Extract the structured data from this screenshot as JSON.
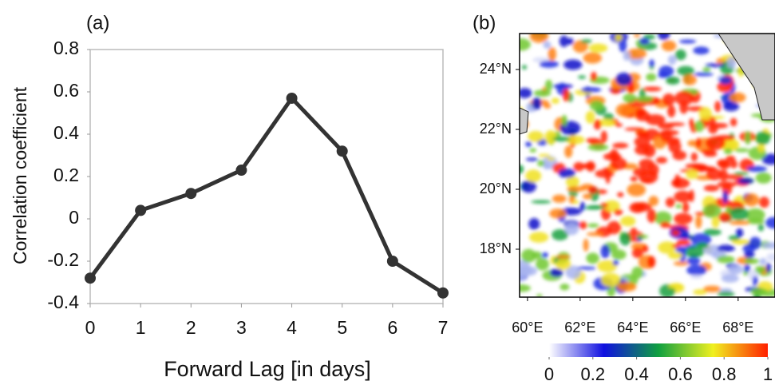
{
  "chart_data": [
    {
      "type": "line",
      "label": "(a)",
      "ylabel": "Correlation coefficient",
      "xlabel": "Forward Lag [in days]",
      "x": [
        0,
        1,
        2,
        3,
        4,
        5,
        6,
        7
      ],
      "series": [
        {
          "color": "#333333",
          "values": [
            -0.28,
            0.04,
            0.12,
            0.23,
            0.57,
            0.32,
            -0.2,
            -0.35
          ]
        }
      ],
      "xlim": [
        0,
        7
      ],
      "xticks": [
        0,
        1,
        2,
        3,
        4,
        5,
        6,
        7
      ],
      "ylim": [
        -0.4,
        0.8
      ],
      "yticks": [
        -0.4,
        -0.2,
        0,
        0.2,
        0.4,
        0.6,
        0.8
      ]
    },
    {
      "type": "map",
      "label": "(b)",
      "xlim": [
        59.7,
        69.4
      ],
      "xticks": [
        {
          "value": 60,
          "label": "60°E"
        },
        {
          "value": 62,
          "label": "62°E"
        },
        {
          "value": 64,
          "label": "64°E"
        },
        {
          "value": 66,
          "label": "66°E"
        },
        {
          "value": 68,
          "label": "68°E"
        }
      ],
      "ylim": [
        16.4,
        25.2
      ],
      "yticks": [
        {
          "value": 18,
          "label": "18°N"
        },
        {
          "value": 20,
          "label": "20°N"
        },
        {
          "value": 22,
          "label": "22°N"
        },
        {
          "value": 24,
          "label": "24°N"
        }
      ],
      "colorbar": {
        "lim": [
          0,
          1
        ],
        "ticks": [
          0,
          0.2,
          0.4,
          0.6,
          0.8,
          1
        ],
        "colors": [
          "#ffffff",
          "#1010e0",
          "#10a040",
          "#f0f020",
          "#ff2000"
        ]
      }
    }
  ]
}
